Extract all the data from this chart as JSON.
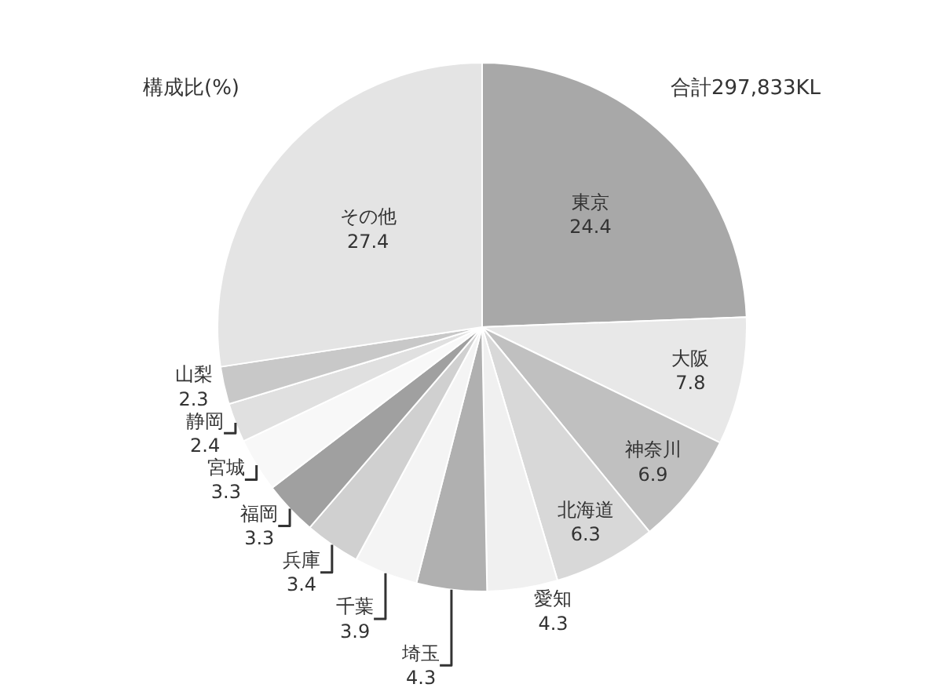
{
  "chart_data": {
    "type": "pie",
    "title": "構成比(%)",
    "annotations": [
      "合計297,833KL"
    ],
    "categories": [
      "東京",
      "大阪",
      "神奈川",
      "北海道",
      "愛知",
      "埼玉",
      "千葉",
      "兵庫",
      "福岡",
      "宮城",
      "静岡",
      "山梨",
      "その他"
    ],
    "values": [
      24.4,
      7.8,
      6.9,
      6.3,
      4.3,
      4.3,
      3.9,
      3.4,
      3.3,
      3.3,
      2.4,
      2.3,
      27.4
    ],
    "colors": [
      "#a8a8a8",
      "#e8e8e8",
      "#c0c0c0",
      "#d8d8d8",
      "#f0f0f0",
      "#b0b0b0",
      "#f4f4f4",
      "#d0d0d0",
      "#a0a0a0",
      "#f8f8f8",
      "#e0e0e0",
      "#c8c8c8",
      "#e4e4e4"
    ],
    "data_labels": true,
    "legend": false
  }
}
